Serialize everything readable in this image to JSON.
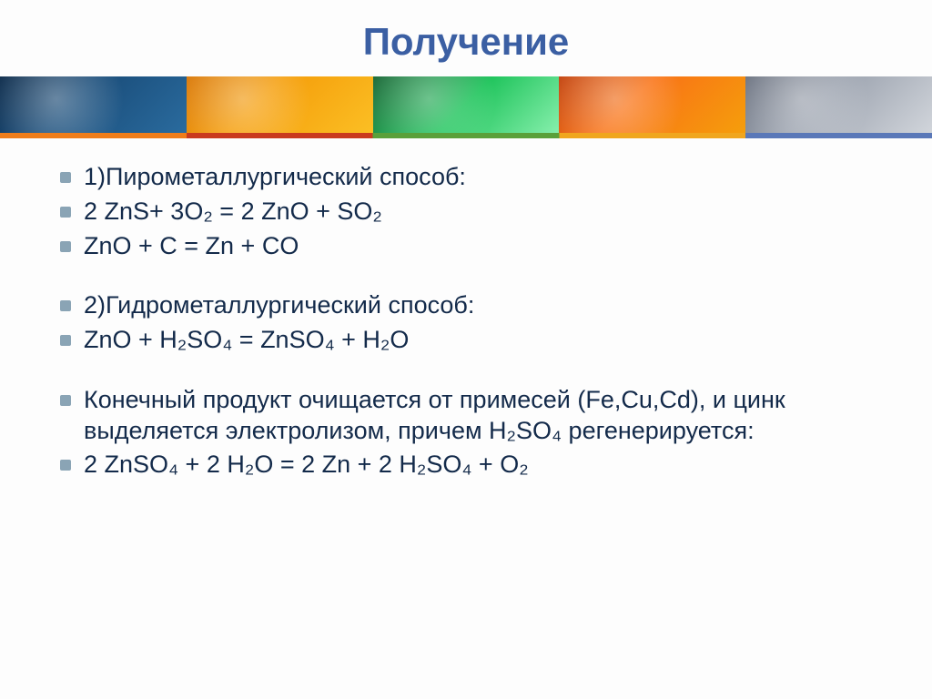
{
  "title": {
    "text": "Получение",
    "color": "#3b5fa3",
    "fontsize": 42
  },
  "banner": {
    "segments": [
      {
        "bg": "linear-gradient(135deg,#0b2a4a 0%, #1a4d7a 40%, #2a6b9e 100%)"
      },
      {
        "bg": "linear-gradient(135deg,#d97706 0%, #f59e0b 40%, #fbbf24 100%)"
      },
      {
        "bg": "linear-gradient(135deg,#166534 0%, #22c55e 50%, #86efac 100%)"
      },
      {
        "bg": "linear-gradient(135deg,#c2410c 0%, #f97316 40%, #f59e0b 100%)"
      },
      {
        "bg": "linear-gradient(135deg,#6b7280 0%, #9ca3af 40%, #d1d5db 100%)"
      }
    ],
    "accent_colors": [
      "#ef7d1a",
      "#c93a1e",
      "#5aa03a",
      "#f0a61e",
      "#5a78b8"
    ]
  },
  "body": {
    "fontsize": 27,
    "text_color": "#132a4a",
    "bullet_color": "#8aa4b5",
    "items": [
      {
        "text": "1)Пирометаллургический способ:"
      },
      {
        "text": "2 ZnS+ 3O₂ = 2 ZnO + SO₂"
      },
      {
        "text": "   ZnO  + C = Zn + CO"
      },
      {
        "spacer": true
      },
      {
        "text": "2)Гидрометаллургический способ:"
      },
      {
        "text": "ZnO + H₂SO₄ = ZnSO₄ + H₂O"
      },
      {
        "spacer": true
      },
      {
        "text": "Конечный продукт очищается от примесей (Fe,Cu,Cd), и цинк выделяется электролизом, причем H₂SO₄ регенерируется:"
      },
      {
        "text": " 2 ZnSO₄ + 2 H₂O = 2 Zn + 2 H₂SO₄ + O₂"
      }
    ]
  }
}
